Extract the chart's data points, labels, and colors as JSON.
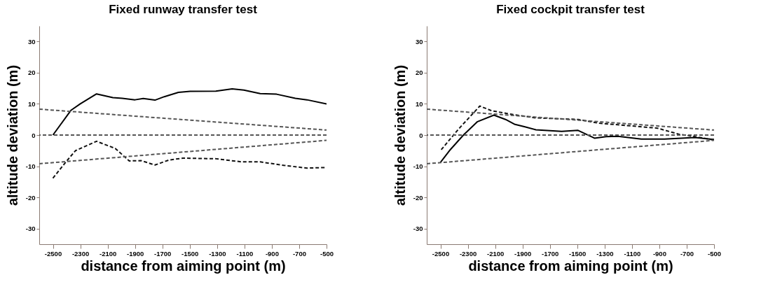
{
  "chart_data": [
    {
      "type": "line",
      "title": "Fixed runway transfer test",
      "xlabel": "distance from aiming point (m)",
      "ylabel": "altitude deviation (m)",
      "xlim": [
        -2600,
        -500
      ],
      "ylim": [
        -35,
        35
      ],
      "xticks": [
        -2500,
        -2300,
        -2100,
        -1900,
        -1700,
        -1500,
        -1300,
        -1100,
        -900,
        -700,
        -500
      ],
      "yticks": [
        -30,
        -20,
        -10,
        0,
        10,
        20,
        30
      ],
      "grid": false,
      "ref_lines": [
        {
          "axis": "y",
          "value": 0,
          "color": "#555555",
          "line_style": "dashed"
        }
      ],
      "series": [
        {
          "color": "#000000",
          "line_style": "solid",
          "x": [
            -2500,
            -2369,
            -2300,
            -2181,
            -2062,
            -1993,
            -1900,
            -1840,
            -1754,
            -1686,
            -1583,
            -1497,
            -1309,
            -1190,
            -1104,
            -985,
            -865,
            -728,
            -643,
            -500
          ],
          "values": [
            0,
            7.9,
            10,
            13.2,
            12,
            11.8,
            11.3,
            11.7,
            11.2,
            12.3,
            13.7,
            14,
            14.1,
            14.8,
            14.4,
            13.3,
            13.1,
            11.8,
            11.3,
            10
          ]
        },
        {
          "color": "#111111",
          "line_style": "dashed",
          "x": [
            -2500,
            -2403,
            -2335,
            -2181,
            -2044,
            -1942,
            -1856,
            -1754,
            -1651,
            -1549,
            -1309,
            -1121,
            -985,
            -814,
            -643,
            -500
          ],
          "values": [
            -13.8,
            -8.5,
            -5,
            -2,
            -4.3,
            -8.3,
            -8.2,
            -9.6,
            -8,
            -7.4,
            -7.6,
            -8.6,
            -8.6,
            -9.7,
            -10.6,
            -10.4
          ]
        },
        {
          "color": "#555555",
          "line_style": "dashed",
          "x": [
            -2600,
            -500
          ],
          "values": [
            8.3,
            1.6
          ]
        },
        {
          "color": "#555555",
          "line_style": "dashed",
          "x": [
            -2600,
            -500
          ],
          "values": [
            -9.2,
            -1.7
          ]
        }
      ]
    },
    {
      "type": "line",
      "title": "Fixed cockpit transfer test",
      "xlabel": "distance from aiming point (m)",
      "ylabel": "altitude deviation (m)",
      "xlim": [
        -2600,
        -500
      ],
      "ylim": [
        -35,
        35
      ],
      "xticks": [
        -2500,
        -2300,
        -2100,
        -1900,
        -1700,
        -1500,
        -1300,
        -1100,
        -900,
        -700,
        -500
      ],
      "yticks": [
        -30,
        -20,
        -10,
        0,
        10,
        20,
        30
      ],
      "grid": false,
      "ref_lines": [
        {
          "axis": "y",
          "value": 0,
          "color": "#555555",
          "line_style": "dashed"
        }
      ],
      "series": [
        {
          "color": "#000000",
          "line_style": "solid",
          "x": [
            -2500,
            -2434,
            -2332,
            -2229,
            -2109,
            -2024,
            -1955,
            -1887,
            -1802,
            -1614,
            -1494,
            -1374,
            -1289,
            -1203,
            -1032,
            -862,
            -640,
            -500
          ],
          "values": [
            -8.8,
            -5,
            0,
            4.3,
            6.4,
            5,
            3.4,
            2.7,
            1.7,
            1.2,
            1.5,
            -1,
            -0.5,
            -0.4,
            -1.3,
            -1.3,
            -0.8,
            -1.4
          ]
        },
        {
          "color": "#111111",
          "line_style": "dashed",
          "x": [
            -2494,
            -2366,
            -2212,
            -2126,
            -1973,
            -1802,
            -1494,
            -1340,
            -1203,
            -913,
            -759,
            -640,
            -500
          ],
          "values": [
            -4.7,
            2,
            9.3,
            7.8,
            6.6,
            5.5,
            5,
            3.8,
            3.3,
            2.2,
            0.3,
            -0.5,
            -1.6
          ]
        },
        {
          "color": "#555555",
          "line_style": "dashed",
          "x": [
            -2600,
            -500
          ],
          "values": [
            8.3,
            1.6
          ]
        },
        {
          "color": "#555555",
          "line_style": "dashed",
          "x": [
            -2600,
            -500
          ],
          "values": [
            -9.2,
            -1.7
          ]
        }
      ]
    }
  ]
}
